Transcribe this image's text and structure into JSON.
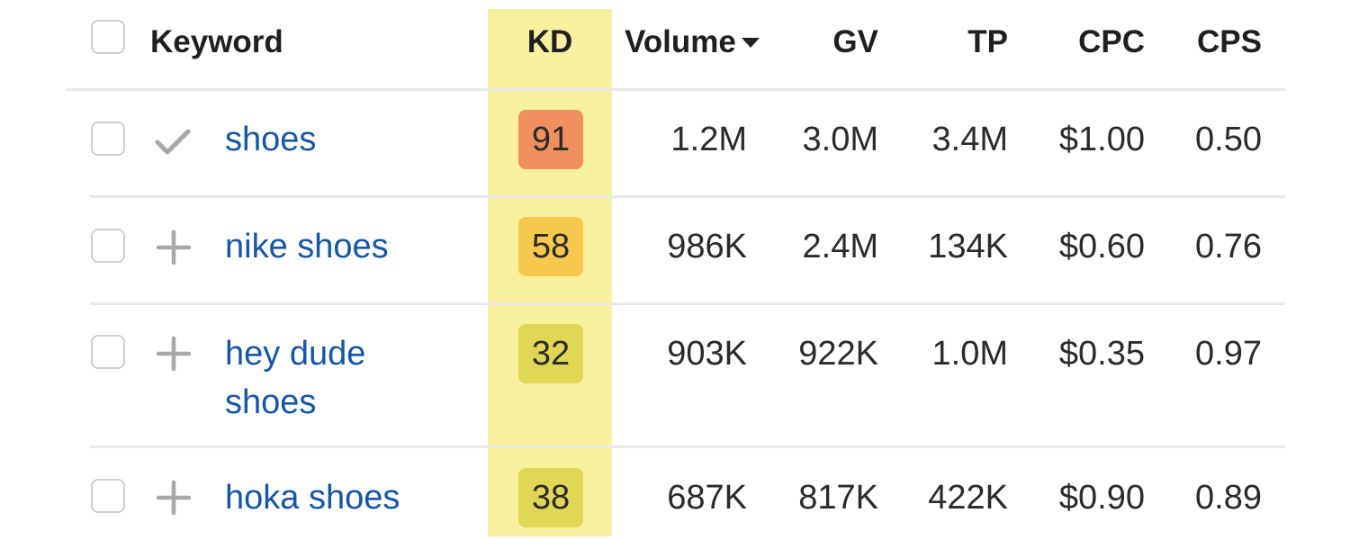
{
  "header": {
    "keyword": "Keyword",
    "kd": "KD",
    "volume": "Volume",
    "gv": "GV",
    "tp": "TP",
    "cpc": "CPC",
    "cps": "CPS"
  },
  "colors": {
    "kd_column_highlight": "#f8f09e",
    "link": "#1556a6",
    "kd_hard": "#f0905f",
    "kd_medium": "#f7c84e",
    "kd_easy": "#e2d655"
  },
  "rows": [
    {
      "keyword": "shoes",
      "status_icon": "check-icon",
      "kd": "91",
      "kd_color": "#f0905f",
      "volume": "1.2M",
      "gv": "3.0M",
      "tp": "3.4M",
      "cpc": "$1.00",
      "cps": "0.50"
    },
    {
      "keyword": "nike shoes",
      "status_icon": "plus-icon",
      "kd": "58",
      "kd_color": "#f7c84e",
      "volume": "986K",
      "gv": "2.4M",
      "tp": "134K",
      "cpc": "$0.60",
      "cps": "0.76"
    },
    {
      "keyword": "hey dude shoes",
      "status_icon": "plus-icon",
      "kd": "32",
      "kd_color": "#e2d655",
      "volume": "903K",
      "gv": "922K",
      "tp": "1.0M",
      "cpc": "$0.35",
      "cps": "0.97"
    },
    {
      "keyword": "hoka shoes",
      "status_icon": "plus-icon",
      "kd": "38",
      "kd_color": "#e2d655",
      "volume": "687K",
      "gv": "817K",
      "tp": "422K",
      "cpc": "$0.90",
      "cps": "0.89"
    }
  ]
}
